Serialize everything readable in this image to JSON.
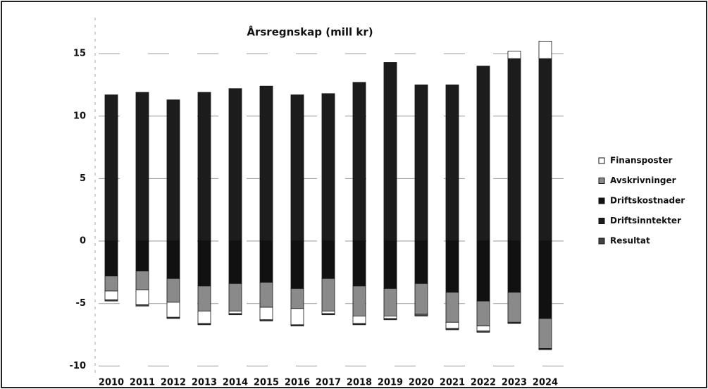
{
  "chart_data": {
    "type": "bar",
    "stacked": true,
    "title": "Årsregnskap (mill kr)",
    "categories": [
      "2010",
      "2011",
      "2012",
      "2013",
      "2014",
      "2015",
      "2016",
      "2017",
      "2018",
      "2019",
      "2020",
      "2021",
      "2022",
      "2023",
      "2024"
    ],
    "series": [
      {
        "name": "Finansposter",
        "color": "#ffffff",
        "values": [
          -0.7,
          -1.2,
          -1.2,
          -1.0,
          -0.2,
          -1.0,
          -1.3,
          -0.2,
          -0.6,
          -0.2,
          -0.1,
          -0.5,
          -0.4,
          0.6,
          1.4
        ]
      },
      {
        "name": "Avskrivninger",
        "color": "#8a8a8a",
        "values": [
          -1.2,
          -1.5,
          -1.9,
          -2.0,
          -2.2,
          -2.0,
          -1.6,
          -2.6,
          -2.4,
          -2.2,
          -2.4,
          -2.4,
          -2.0,
          -2.4,
          -2.4
        ]
      },
      {
        "name": "Driftskostnader",
        "color": "#111111",
        "values": [
          -2.8,
          -2.4,
          -3.0,
          -3.6,
          -3.4,
          -3.3,
          -3.8,
          -3.0,
          -3.6,
          -3.8,
          -3.4,
          -4.1,
          -4.8,
          -4.1,
          -6.2
        ]
      },
      {
        "name": "Driftsinntekter",
        "color": "#1c1c1c",
        "values": [
          11.7,
          11.9,
          11.3,
          11.9,
          12.2,
          12.4,
          11.7,
          11.8,
          12.7,
          14.3,
          12.5,
          12.5,
          14.0,
          14.6,
          14.6
        ]
      },
      {
        "name": "Resultat",
        "color": "#444444",
        "values": [
          -0.1,
          -0.1,
          -0.1,
          -0.1,
          -0.1,
          -0.1,
          -0.1,
          -0.1,
          -0.1,
          -0.1,
          -0.1,
          -0.1,
          -0.1,
          -0.1,
          -0.1
        ]
      }
    ],
    "ylim": [
      -10.6,
      17.6
    ],
    "yticks": [
      -10,
      -5,
      0,
      5,
      10,
      15
    ],
    "grid": true,
    "legend": "right"
  }
}
